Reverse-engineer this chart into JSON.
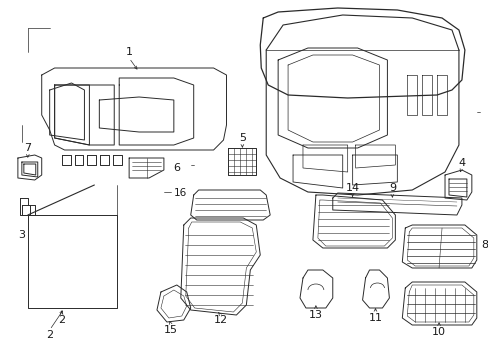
{
  "background_color": "#ffffff",
  "line_color": "#2a2a2a",
  "text_color": "#1a1a1a",
  "figsize": [
    4.89,
    3.6
  ],
  "dpi": 100,
  "lw": 0.7
}
